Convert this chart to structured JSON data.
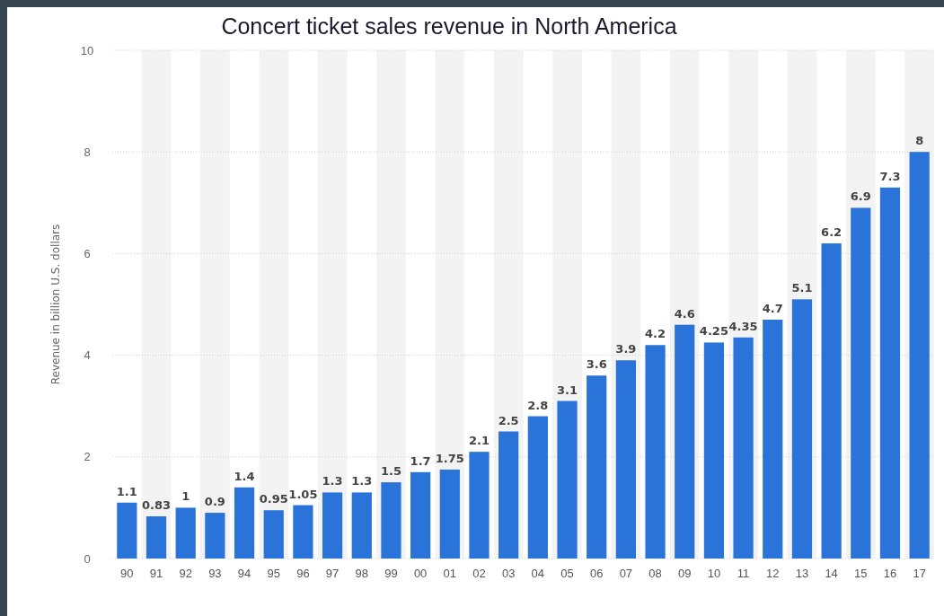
{
  "chart_data": {
    "type": "bar",
    "title": "Concert ticket sales revenue in North America",
    "ylabel": "Revenue in billion U.S. dollars",
    "categories": [
      "90",
      "91",
      "92",
      "93",
      "94",
      "95",
      "96",
      "97",
      "98",
      "99",
      "00",
      "01",
      "02",
      "03",
      "04",
      "05",
      "06",
      "07",
      "08",
      "09",
      "10",
      "11",
      "12",
      "13",
      "14",
      "15",
      "16",
      "17"
    ],
    "values": [
      1.1,
      0.83,
      1,
      0.9,
      1.4,
      0.95,
      1.05,
      1.3,
      1.3,
      1.5,
      1.7,
      1.75,
      2.1,
      2.5,
      2.8,
      3.1,
      3.6,
      3.9,
      4.2,
      4.6,
      4.25,
      4.35,
      4.7,
      5.1,
      6.2,
      6.9,
      7.3,
      8
    ],
    "color": "#2a73d9",
    "ylim": [
      0,
      10
    ],
    "yticks": [
      0,
      2,
      4,
      6,
      8,
      10
    ],
    "grid": "y",
    "data_labels": true
  }
}
